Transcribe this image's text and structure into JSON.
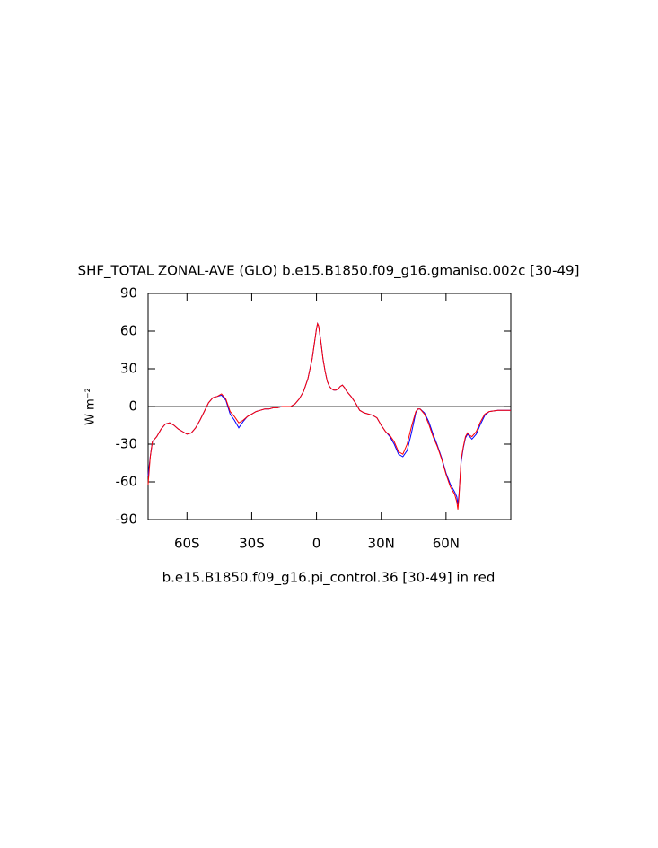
{
  "chart_data": {
    "type": "line",
    "title": "SHF_TOTAL ZONAL-AVE (GLO) b.e15.B1850.f09_g16.gmaniso.002c [30-49]",
    "subtitle": "b.e15.B1850.f09_g16.pi_control.36 [30-49] in red",
    "ylabel": "W m⁻²",
    "x": [
      -78,
      -77,
      -76,
      -74,
      -72,
      -70,
      -68,
      -66,
      -64,
      -62,
      -60,
      -58,
      -56,
      -54,
      -52,
      -50,
      -48,
      -46,
      -44,
      -42,
      -40,
      -38,
      -36,
      -34,
      -32,
      -30,
      -28,
      -26,
      -24,
      -22,
      -20,
      -18,
      -16,
      -14,
      -12,
      -10,
      -8,
      -6,
      -4,
      -2,
      -1,
      0,
      0.5,
      1,
      2,
      3,
      4,
      5,
      6,
      7,
      8,
      9,
      10,
      11,
      12,
      13,
      14,
      16,
      18,
      20,
      22,
      24,
      26,
      28,
      30,
      32,
      34,
      36,
      38,
      40,
      42,
      44,
      46,
      47,
      48,
      50,
      52,
      54,
      56,
      58,
      60,
      62,
      64,
      65,
      65.5,
      66,
      67,
      68,
      69,
      70,
      71,
      72,
      74,
      76,
      78,
      80,
      84,
      88,
      90
    ],
    "series": [
      {
        "color": "#0000ff",
        "values": [
          -55,
          -40,
          -28,
          -24,
          -18,
          -14,
          -13,
          -15,
          -18,
          -20,
          -22,
          -21,
          -17,
          -11,
          -4,
          3,
          7,
          8,
          9,
          5,
          -6,
          -11,
          -17,
          -12,
          -8,
          -6,
          -4,
          -3,
          -2,
          -2,
          -1,
          -1,
          0,
          0,
          0,
          2,
          6,
          12,
          22,
          38,
          50,
          62,
          66,
          64,
          52,
          38,
          28,
          20,
          16,
          14,
          13,
          13,
          14,
          16,
          17,
          15,
          12,
          8,
          3,
          -3,
          -5,
          -6,
          -7,
          -9,
          -15,
          -20,
          -24,
          -30,
          -38,
          -40,
          -35,
          -21,
          -5,
          -2,
          -2,
          -5,
          -12,
          -22,
          -31,
          -41,
          -53,
          -62,
          -68,
          -72,
          -78,
          -70,
          -44,
          -33,
          -25,
          -22,
          -24,
          -26,
          -22,
          -14,
          -7,
          -4,
          -3,
          -3,
          -3
        ]
      },
      {
        "color": "#ff0000",
        "values": [
          -62,
          -40,
          -28,
          -24,
          -18,
          -14,
          -13,
          -15,
          -18,
          -20,
          -22,
          -21,
          -17,
          -11,
          -4,
          3,
          7,
          8,
          10,
          6,
          -4,
          -8,
          -13,
          -11,
          -8,
          -6,
          -4,
          -3,
          -2,
          -2,
          -1,
          -1,
          0,
          0,
          0,
          2,
          6,
          12,
          22,
          38,
          50,
          62,
          66,
          64,
          52,
          38,
          28,
          20,
          16,
          14,
          13,
          13,
          14,
          16,
          17,
          15,
          12,
          8,
          3,
          -3,
          -5,
          -6,
          -7,
          -9,
          -15,
          -20,
          -23,
          -28,
          -36,
          -38,
          -30,
          -16,
          -4,
          -2,
          -2,
          -6,
          -14,
          -24,
          -32,
          -42,
          -54,
          -64,
          -70,
          -76,
          -82,
          -72,
          -42,
          -32,
          -24,
          -21,
          -23,
          -24,
          -20,
          -12,
          -6,
          -4,
          -3,
          -3,
          -3
        ]
      }
    ],
    "xlim": [
      -78,
      90
    ],
    "xticks": [
      {
        "value": -60,
        "label": "60S"
      },
      {
        "value": -30,
        "label": "30S"
      },
      0,
      {
        "value": 30,
        "label": "30N"
      },
      {
        "value": 60,
        "label": "60N"
      }
    ],
    "ylim": [
      -90,
      90
    ],
    "yticks": [
      -90,
      -60,
      -30,
      0,
      30,
      60,
      90
    ],
    "reference_line": 0
  }
}
